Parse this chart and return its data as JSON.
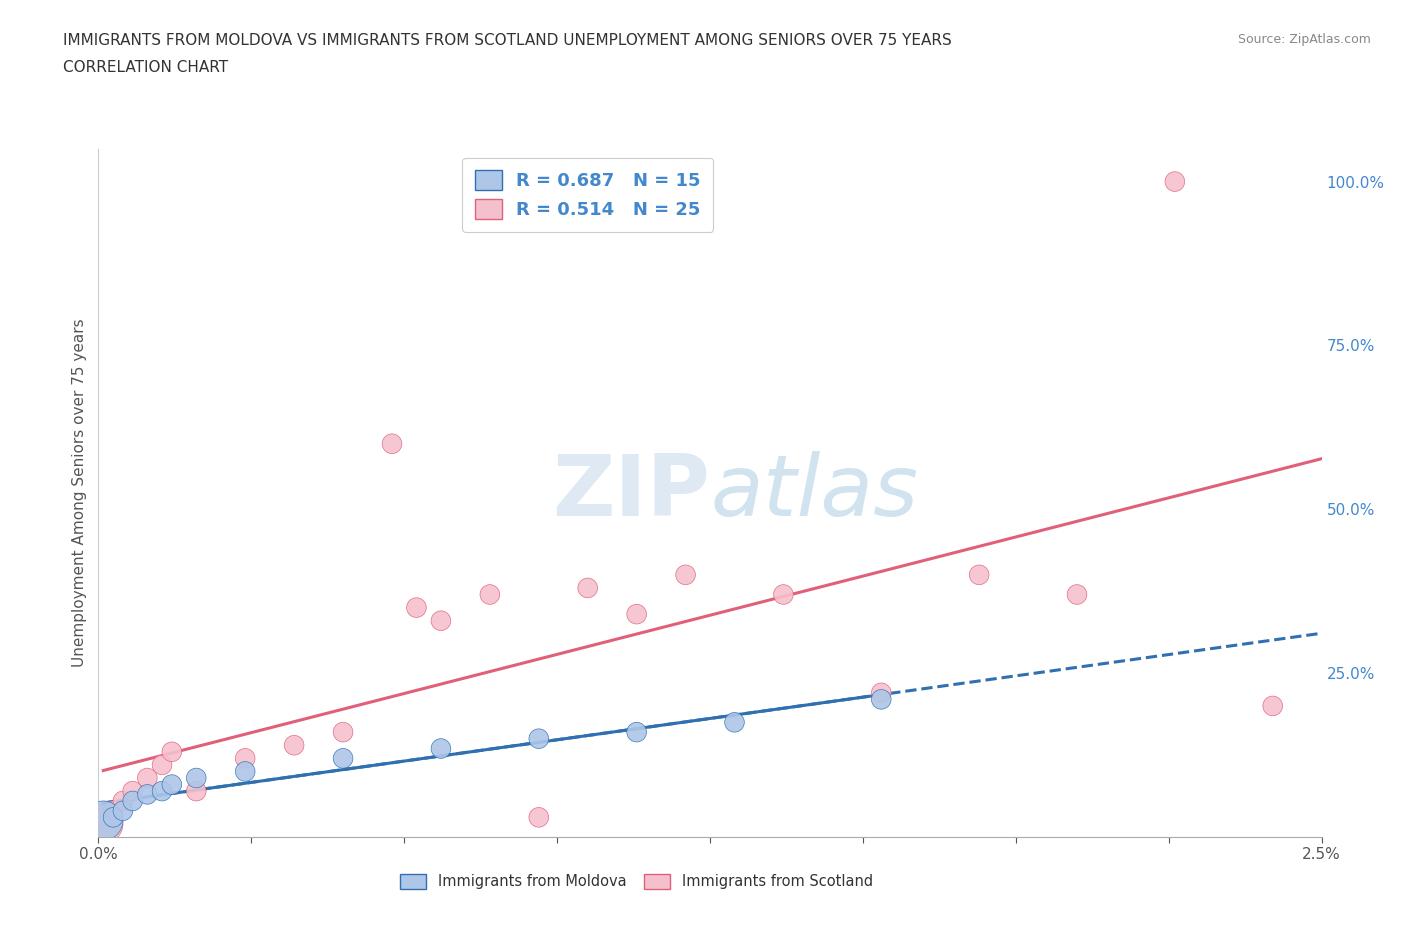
{
  "title_line1": "IMMIGRANTS FROM MOLDOVA VS IMMIGRANTS FROM SCOTLAND UNEMPLOYMENT AMONG SENIORS OVER 75 YEARS",
  "title_line2": "CORRELATION CHART",
  "source": "Source: ZipAtlas.com",
  "ylabel": "Unemployment Among Seniors over 75 years",
  "moldova_R": 0.687,
  "moldova_N": 15,
  "scotland_R": 0.514,
  "scotland_N": 25,
  "moldova_color": "#aec6e8",
  "moldova_line_color": "#3070b0",
  "scotland_color": "#f5c0ce",
  "scotland_line_color": "#e0607a",
  "background_color": "#ffffff",
  "xmin": 0.0,
  "xmax": 0.025,
  "ymin": 0.0,
  "ymax": 1.05,
  "moldova_x": [
    0.0001,
    0.0003,
    0.0005,
    0.0007,
    0.001,
    0.0013,
    0.0015,
    0.002,
    0.003,
    0.005,
    0.007,
    0.009,
    0.011,
    0.013,
    0.016
  ],
  "moldova_y": [
    0.025,
    0.03,
    0.04,
    0.055,
    0.065,
    0.07,
    0.08,
    0.09,
    0.1,
    0.12,
    0.135,
    0.15,
    0.16,
    0.175,
    0.21
  ],
  "moldova_sizes": [
    800,
    200,
    200,
    200,
    200,
    200,
    200,
    200,
    200,
    200,
    200,
    200,
    200,
    200,
    200
  ],
  "scotland_x": [
    0.0001,
    0.0003,
    0.0005,
    0.0007,
    0.001,
    0.0013,
    0.0015,
    0.002,
    0.003,
    0.004,
    0.005,
    0.006,
    0.0065,
    0.007,
    0.008,
    0.009,
    0.01,
    0.011,
    0.012,
    0.014,
    0.016,
    0.018,
    0.02,
    0.022,
    0.024
  ],
  "scotland_y": [
    0.02,
    0.04,
    0.055,
    0.07,
    0.09,
    0.11,
    0.13,
    0.07,
    0.12,
    0.14,
    0.16,
    0.6,
    0.35,
    0.33,
    0.37,
    0.03,
    0.38,
    0.34,
    0.4,
    0.37,
    0.22,
    0.4,
    0.37,
    1.0,
    0.2
  ],
  "scotland_sizes": [
    800,
    200,
    200,
    200,
    200,
    200,
    200,
    200,
    200,
    200,
    200,
    200,
    200,
    200,
    200,
    200,
    200,
    200,
    200,
    200,
    200,
    200,
    200,
    200,
    200
  ],
  "xtick_positions": [
    0.0,
    0.003125,
    0.00625,
    0.009375,
    0.0125,
    0.015625,
    0.01875,
    0.021875,
    0.025
  ],
  "ytick_positions": [
    0.0,
    0.25,
    0.5,
    0.75,
    1.0
  ],
  "ytick_labels": [
    "",
    "25.0%",
    "50.0%",
    "75.0%",
    "100.0%"
  ]
}
